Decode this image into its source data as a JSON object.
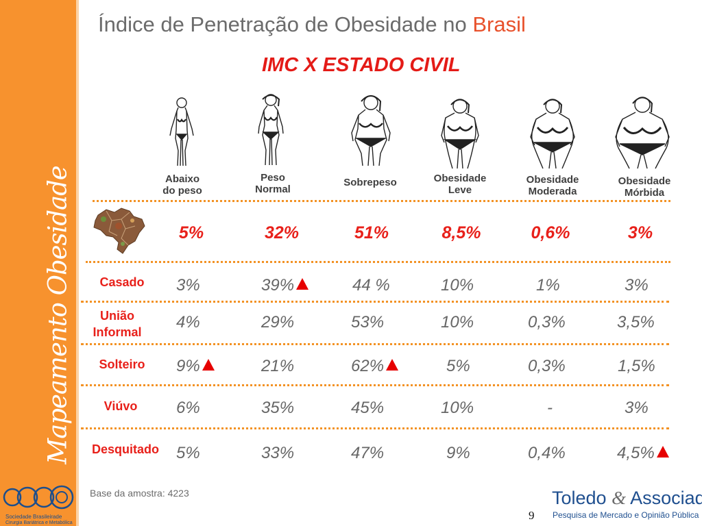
{
  "sidebar": {
    "vertical_title": "Mapeamento Obesidade"
  },
  "header": {
    "title_main": "Índice de Penetração de Obesidade no",
    "title_accent": "Brasil",
    "subtitle": "IMC X ESTADO CIVIL"
  },
  "categories": [
    {
      "line1": "Abaixo",
      "line2": "do peso",
      "icon": "figure-underweight-icon"
    },
    {
      "line1": "Peso",
      "line2": "Normal",
      "icon": "figure-normal-weight-icon"
    },
    {
      "line1": "Sobrepeso",
      "line2": "",
      "icon": "figure-overweight-icon"
    },
    {
      "line1": "Obesidade",
      "line2": "Leve",
      "icon": "figure-mild-obesity-icon"
    },
    {
      "line1": "Obesidade",
      "line2": "Moderada",
      "icon": "figure-moderate-obesity-icon"
    },
    {
      "line1": "Obesidade",
      "line2": "Mórbida",
      "icon": "figure-morbid-obesity-icon"
    }
  ],
  "brazil_totals": [
    "5%",
    "32%",
    "51%",
    "8,5%",
    "0,6%",
    "3%"
  ],
  "rows": [
    {
      "label": [
        "Casado"
      ],
      "values": [
        "3%",
        "39%",
        "44 %",
        "10%",
        "1%",
        "3%"
      ],
      "highlights": [
        false,
        true,
        false,
        false,
        false,
        false
      ]
    },
    {
      "label": [
        "União",
        "Informal"
      ],
      "values": [
        "4%",
        "29%",
        "53%",
        "10%",
        "0,3%",
        "3,5%"
      ],
      "highlights": [
        false,
        false,
        false,
        false,
        false,
        false
      ]
    },
    {
      "label": [
        "Solteiro"
      ],
      "values": [
        "9%",
        "21%",
        "62%",
        "5%",
        "0,3%",
        "1,5%"
      ],
      "highlights": [
        true,
        false,
        true,
        false,
        false,
        false
      ]
    },
    {
      "label": [
        "Viúvo"
      ],
      "values": [
        "6%",
        "35%",
        "45%",
        "10%",
        "-",
        "3%"
      ],
      "highlights": [
        false,
        false,
        false,
        false,
        false,
        false
      ]
    },
    {
      "label": [
        "Desquitado"
      ],
      "values": [
        "5%",
        "33%",
        "47%",
        "9%",
        "0,4%",
        "4,5%"
      ],
      "highlights": [
        false,
        false,
        false,
        false,
        false,
        true
      ]
    }
  ],
  "footer": {
    "base_note": "Base da amostra: 4223",
    "page_number": "9",
    "sbcbm_logo": {
      "mark": "SBCBM",
      "line1": "Sociedade Brasileirade",
      "line2": "Cirurgia Bariátrica e Metabólica"
    },
    "toledo": {
      "name_first": "Toledo",
      "name_amp": "&",
      "name_second": "Associados",
      "tagline": "Pesquisa de Mercado e  Opinião Pública"
    }
  },
  "colors": {
    "sidebar": "#f7922e",
    "title_accent": "#e8512b",
    "highlight_red": "#e8201a",
    "arrow": "#e60000",
    "dotted_rule": "#f39224",
    "brand_blue": "#1f4f8f"
  }
}
